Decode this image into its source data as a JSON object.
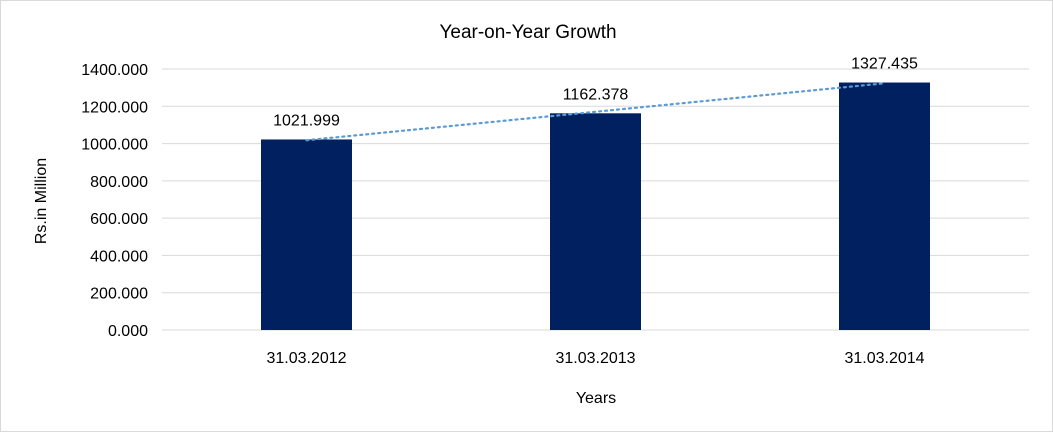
{
  "chart_data": {
    "type": "bar",
    "title": "Year-on-Year Growth",
    "xlabel": "Years",
    "ylabel": "Rs.in Million",
    "categories": [
      "31.03.2012",
      "31.03.2013",
      "31.03.2014"
    ],
    "values": [
      1021.999,
      1162.378,
      1327.435
    ],
    "data_labels": [
      "1021.999",
      "1162.378",
      "1327.435"
    ],
    "ylim": [
      0,
      1400
    ],
    "yticks": [
      "0.000",
      "200.000",
      "400.000",
      "600.000",
      "800.000",
      "1000.000",
      "1200.000",
      "1400.000"
    ],
    "grid": true,
    "trendline": "linear, dotted",
    "colors": {
      "bar": "#002060",
      "trendline": "#5B9BD5",
      "grid": "#d9d9d9"
    }
  }
}
